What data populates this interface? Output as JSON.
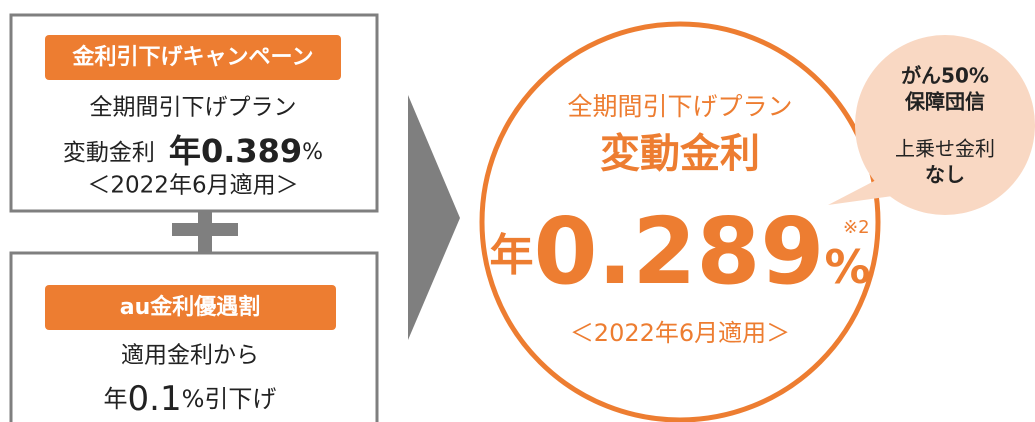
{
  "campaign": {
    "label": "金利引下げキャンペーン",
    "plan": "全期間引下げプラン",
    "rate_name": "変動金利",
    "rate_prefix": "年",
    "rate": "0.389",
    "rate_unit": "%",
    "period": "＜2022年6月適用＞"
  },
  "discount": {
    "label": "au金利優遇割",
    "line1": "適用金利から",
    "prefix": "年",
    "amount": "0.1",
    "suffix": "%引下げ"
  },
  "result": {
    "plan": "全期間引下げプラン",
    "rate_name": "変動金利",
    "prefix": "年",
    "rate": "0.289",
    "unit": "%",
    "note": "※2",
    "period": "＜2022年6月適用＞"
  },
  "bubble": {
    "lines": [
      "がん50%",
      "保障団信",
      "上乗せ金利",
      "なし"
    ]
  }
}
